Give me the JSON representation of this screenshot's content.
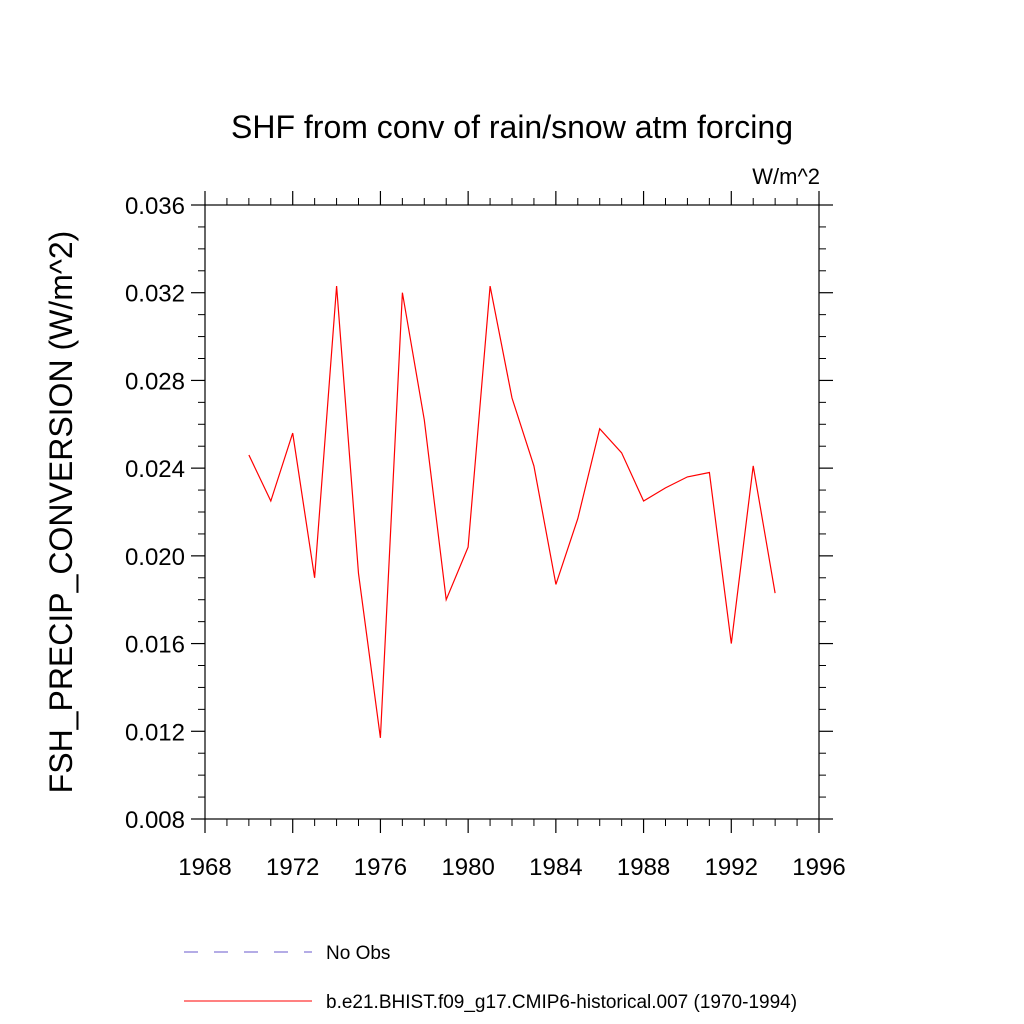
{
  "chart_data": {
    "type": "line",
    "title": "SHF from conv of rain/snow atm forcing",
    "units_label": "W/m^2",
    "ylabel": "FSH_PRECIP_CONVERSION  (W/m^2)",
    "xlabel": "",
    "xlim": [
      1968,
      1996
    ],
    "ylim": [
      0.008,
      0.036
    ],
    "x_ticks": [
      1968,
      1972,
      1976,
      1980,
      1984,
      1988,
      1992,
      1996
    ],
    "x_tick_labels": [
      "1968",
      "1972",
      "1976",
      "1980",
      "1984",
      "1988",
      "1992",
      "1996"
    ],
    "y_ticks": [
      0.008,
      0.012,
      0.016,
      0.02,
      0.024,
      0.028,
      0.032,
      0.036
    ],
    "y_tick_labels": [
      "0.008",
      "0.012",
      "0.016",
      "0.020",
      "0.024",
      "0.028",
      "0.032",
      "0.036"
    ],
    "grid": false,
    "legend_position": "bottom",
    "series": [
      {
        "name": "b.e21.BHIST.f09_g17.CMIP6-historical.007 (1970-1994)",
        "color": "#ff0000",
        "style": "solid",
        "x": [
          1970,
          1971,
          1972,
          1973,
          1974,
          1975,
          1976,
          1977,
          1978,
          1979,
          1980,
          1981,
          1982,
          1983,
          1984,
          1985,
          1986,
          1987,
          1988,
          1989,
          1990,
          1991,
          1992,
          1993,
          1994
        ],
        "y": [
          0.0246,
          0.0225,
          0.0256,
          0.019,
          0.0323,
          0.0192,
          0.0117,
          0.032,
          0.0262,
          0.018,
          0.0204,
          0.0323,
          0.0272,
          0.0241,
          0.0187,
          0.0217,
          0.0258,
          0.0247,
          0.0225,
          0.0231,
          0.0236,
          0.0238,
          0.016,
          0.0241,
          0.0183
        ]
      }
    ],
    "legend": [
      {
        "label": "No Obs",
        "color": "#6a5acd",
        "style": "dashed"
      },
      {
        "label": "b.e21.BHIST.f09_g17.CMIP6-historical.007 (1970-1994)",
        "color": "#ff0000",
        "style": "solid"
      }
    ]
  }
}
